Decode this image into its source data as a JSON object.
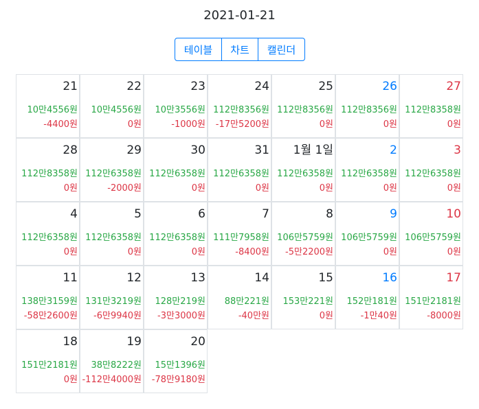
{
  "header": {
    "date": "2021-01-21"
  },
  "view_tabs": [
    {
      "label": "테이블"
    },
    {
      "label": "차트"
    },
    {
      "label": "캘린더"
    }
  ],
  "colors": {
    "accent": "#007bff",
    "positive": "#28a745",
    "negative": "#dc3545",
    "saturday": "#007bff",
    "sunday": "#dc3545",
    "border": "#dee2e6"
  },
  "calendar": {
    "weeks": [
      [
        {
          "day": "21",
          "total": "10만4556원",
          "diff": "-4400원"
        },
        {
          "day": "22",
          "total": "10만4556원",
          "diff": "0원"
        },
        {
          "day": "23",
          "total": "10만3556원",
          "diff": "-1000원"
        },
        {
          "day": "24",
          "total": "112만8356원",
          "diff": "-17만5200원"
        },
        {
          "day": "25",
          "total": "112만8356원",
          "diff": "0원"
        },
        {
          "day": "26",
          "total": "112만8356원",
          "diff": "0원"
        },
        {
          "day": "27",
          "total": "112만8358원",
          "diff": "0원"
        }
      ],
      [
        {
          "day": "28",
          "total": "112만8358원",
          "diff": "0원"
        },
        {
          "day": "29",
          "total": "112만6358원",
          "diff": "-2000원"
        },
        {
          "day": "30",
          "total": "112만6358원",
          "diff": "0원"
        },
        {
          "day": "31",
          "total": "112만6358원",
          "diff": "0원"
        },
        {
          "day": "1월 1일",
          "total": "112만6358원",
          "diff": "0원"
        },
        {
          "day": "2",
          "total": "112만6358원",
          "diff": "0원"
        },
        {
          "day": "3",
          "total": "112만6358원",
          "diff": "0원"
        }
      ],
      [
        {
          "day": "4",
          "total": "112만6358원",
          "diff": "0원"
        },
        {
          "day": "5",
          "total": "112만6358원",
          "diff": "0원"
        },
        {
          "day": "6",
          "total": "112만6358원",
          "diff": "0원"
        },
        {
          "day": "7",
          "total": "111만7958원",
          "diff": "-8400원"
        },
        {
          "day": "8",
          "total": "106만5759원",
          "diff": "-5만2200원"
        },
        {
          "day": "9",
          "total": "106만5759원",
          "diff": "0원"
        },
        {
          "day": "10",
          "total": "106만5759원",
          "diff": "0원"
        }
      ],
      [
        {
          "day": "11",
          "total": "138만3159원",
          "diff": "-58만2600원"
        },
        {
          "day": "12",
          "total": "131만3219원",
          "diff": "-6만9940원"
        },
        {
          "day": "13",
          "total": "128만219원",
          "diff": "-3만3000원"
        },
        {
          "day": "14",
          "total": "88만221원",
          "diff": "-40만원"
        },
        {
          "day": "15",
          "total": "153만221원",
          "diff": "0원"
        },
        {
          "day": "16",
          "total": "152만181원",
          "diff": "-1만40원"
        },
        {
          "day": "17",
          "total": "151만2181원",
          "diff": "-8000원"
        }
      ],
      [
        {
          "day": "18",
          "total": "151만2181원",
          "diff": "0원"
        },
        {
          "day": "19",
          "total": "38만8222원",
          "diff": "-112만4000원"
        },
        {
          "day": "20",
          "total": "15만1396원",
          "diff": "-78만9180원"
        }
      ]
    ]
  }
}
